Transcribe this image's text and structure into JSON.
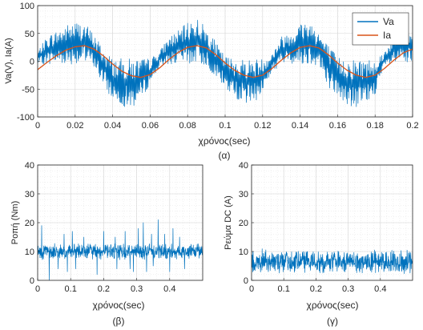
{
  "chart_data": [
    {
      "id": "a",
      "type": "line",
      "caption": "(α)",
      "xlabel": "χρόνος(sec)",
      "ylabel": "Va(V), Ia(A)",
      "xlim": [
        0,
        0.2
      ],
      "ylim": [
        -100,
        100
      ],
      "xticks": [
        0,
        0.02,
        0.04,
        0.06,
        0.08,
        0.1,
        0.12,
        0.14,
        0.16,
        0.18,
        0.2
      ],
      "xtick_labels": [
        "0",
        "0.02",
        "0.04",
        "0.06",
        "0.08",
        "0.1",
        "0.12",
        "0.14",
        "0.16",
        "0.18",
        "0.2"
      ],
      "yticks": [
        -100,
        -50,
        0,
        50,
        100
      ],
      "ytick_labels": [
        "-100",
        "-50",
        "0",
        "50",
        "100"
      ],
      "grid": true,
      "minor_grid": true,
      "legend": "top-right",
      "series": [
        {
          "name": "Va",
          "color": "#0072BD",
          "note": "PWM switching waveform, ~50 Hz envelope, peaks about ±85 V",
          "x": [
            0,
            0.005,
            0.01,
            0.015,
            0.02,
            0.025,
            0.03,
            0.035,
            0.04,
            0.045,
            0.05,
            0.055,
            0.06,
            0.065,
            0.07,
            0.075,
            0.08,
            0.085,
            0.09,
            0.095,
            0.1,
            0.105,
            0.11,
            0.115,
            0.12,
            0.125,
            0.13,
            0.135,
            0.14,
            0.145,
            0.15,
            0.155,
            0.16,
            0.165,
            0.17,
            0.175,
            0.18,
            0.185,
            0.19,
            0.195,
            0.2
          ],
          "upper": [
            18,
            45,
            55,
            65,
            72,
            70,
            50,
            25,
            5,
            5,
            5,
            5,
            5,
            18,
            45,
            55,
            70,
            80,
            60,
            35,
            10,
            5,
            5,
            5,
            5,
            15,
            45,
            55,
            70,
            75,
            55,
            30,
            8,
            5,
            5,
            5,
            5,
            18,
            48,
            60,
            62
          ],
          "lower": [
            -5,
            -5,
            -5,
            -5,
            -5,
            -5,
            -10,
            -45,
            -70,
            -80,
            -85,
            -72,
            -40,
            -10,
            -5,
            -5,
            -5,
            -5,
            -8,
            -30,
            -50,
            -65,
            -75,
            -78,
            -55,
            -20,
            -5,
            -5,
            -5,
            -5,
            -8,
            -45,
            -65,
            -80,
            -85,
            -78,
            -60,
            -12,
            -5,
            -5,
            -8
          ]
        },
        {
          "name": "Ia",
          "color": "#D95319",
          "x": [
            0,
            0.005,
            0.01,
            0.015,
            0.02,
            0.025,
            0.03,
            0.035,
            0.04,
            0.045,
            0.05,
            0.055,
            0.06,
            0.065,
            0.07,
            0.075,
            0.08,
            0.085,
            0.09,
            0.095,
            0.1,
            0.105,
            0.11,
            0.115,
            0.12,
            0.125,
            0.13,
            0.135,
            0.14,
            0.145,
            0.15,
            0.155,
            0.16,
            0.165,
            0.17,
            0.175,
            0.18,
            0.185,
            0.19,
            0.195,
            0.2
          ],
          "y": [
            -15,
            -2,
            10,
            20,
            26,
            28,
            22,
            10,
            -5,
            -18,
            -26,
            -29,
            -24,
            -12,
            3,
            16,
            25,
            28,
            24,
            12,
            -3,
            -16,
            -25,
            -29,
            -25,
            -13,
            2,
            15,
            25,
            28,
            24,
            12,
            -3,
            -16,
            -25,
            -29,
            -25,
            -13,
            2,
            15,
            22
          ]
        }
      ]
    },
    {
      "id": "b",
      "type": "line",
      "caption": "(β)",
      "xlabel": "χρόνος(sec)",
      "ylabel": "Ροπή (Nm)",
      "xlim": [
        0,
        0.5
      ],
      "ylim": [
        0,
        40
      ],
      "xticks": [
        0,
        0.1,
        0.2,
        0.3,
        0.4
      ],
      "xtick_labels": [
        "0",
        "0.1",
        "0.2",
        "0.3",
        "0.4"
      ],
      "yticks": [
        0,
        10,
        20,
        30,
        40
      ],
      "ytick_labels": [
        "0",
        "10",
        "20",
        "30",
        "40"
      ],
      "grid": true,
      "minor_grid": true,
      "series": [
        {
          "color": "#0072BD",
          "note": "noisy torque around 10 Nm, band ~7 to 13 Nm",
          "mean": 10,
          "band": [
            7,
            13
          ],
          "spikes_up": [
            [
              0.012,
              19
            ],
            [
              0.08,
              16
            ],
            [
              0.105,
              17
            ],
            [
              0.14,
              15
            ],
            [
              0.2,
              17
            ],
            [
              0.235,
              15
            ],
            [
              0.265,
              17
            ],
            [
              0.305,
              18
            ],
            [
              0.32,
              20
            ],
            [
              0.345,
              16
            ],
            [
              0.365,
              21
            ],
            [
              0.385,
              16
            ],
            [
              0.41,
              18
            ],
            [
              0.43,
              15
            ]
          ],
          "spikes_down": [
            [
              0.035,
              0
            ],
            [
              0.062,
              4
            ],
            [
              0.09,
              3
            ],
            [
              0.115,
              4
            ],
            [
              0.18,
              2
            ],
            [
              0.24,
              4
            ],
            [
              0.28,
              4
            ],
            [
              0.29,
              3
            ],
            [
              0.33,
              3
            ],
            [
              0.35,
              5
            ],
            [
              0.4,
              3
            ],
            [
              0.445,
              4
            ]
          ]
        }
      ]
    },
    {
      "id": "c",
      "type": "line",
      "caption": "(γ)",
      "xlabel": "χρόνος(sec)",
      "ylabel": "Ρεύμα DC (A)",
      "xlim": [
        0,
        0.5
      ],
      "ylim": [
        0,
        40
      ],
      "xticks": [
        0,
        0.1,
        0.2,
        0.3,
        0.4
      ],
      "xtick_labels": [
        "0",
        "0.1",
        "0.2",
        "0.3",
        "0.4"
      ],
      "yticks": [
        0,
        10,
        20,
        30,
        40
      ],
      "ytick_labels": [
        "0",
        "10",
        "20",
        "30",
        "40"
      ],
      "grid": true,
      "minor_grid": true,
      "series": [
        {
          "color": "#0072BD",
          "note": "noisy DC current around 6 A, band ~2 to 11 A",
          "mean": 6,
          "band": [
            2,
            11
          ],
          "spikes_up": [],
          "spikes_down": []
        }
      ]
    }
  ]
}
